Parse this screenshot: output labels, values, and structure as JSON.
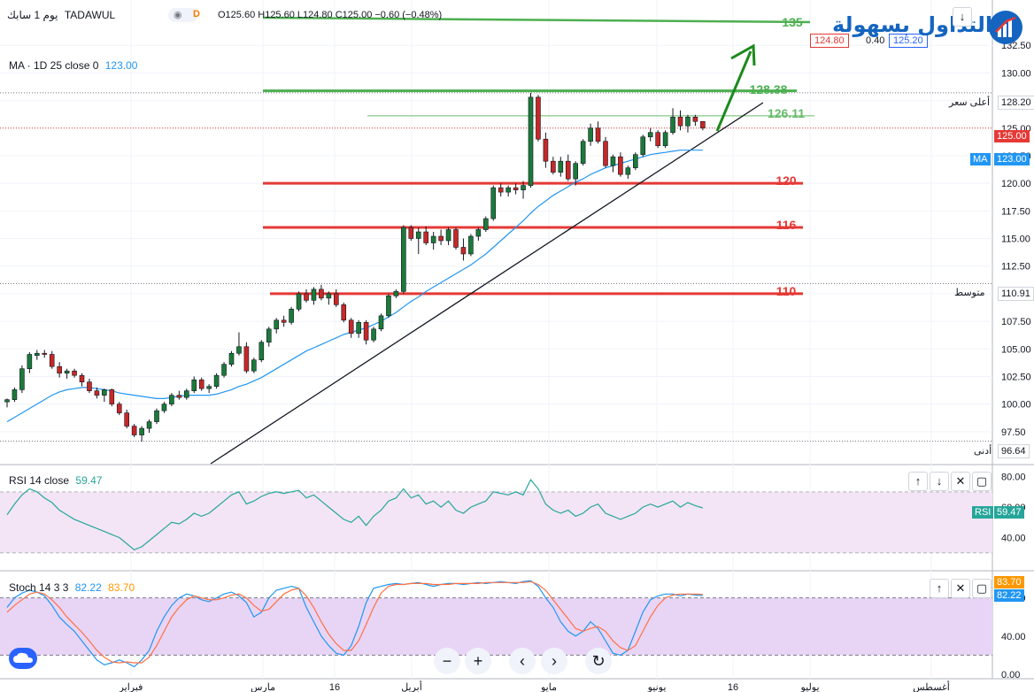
{
  "header": {
    "period": "يوم 1",
    "label": "سابك",
    "exchange": "TADAWUL",
    "ohlc": "O125.60 H125.60 L124.80 C125.00 −0.60 (−0.48%)",
    "sell_price": "124.80",
    "spread": "0.40",
    "buy_price": "125.20"
  },
  "logo": {
    "text": "التداول بسهولة"
  },
  "ma_legend": {
    "label": "MA · 1D 25 close 0",
    "value": "123.00"
  },
  "rsi_legend": {
    "label": "RSI 14 close",
    "value": "59.47"
  },
  "stoch_legend": {
    "label": "Stoch 14 3 3",
    "k": "82.22",
    "d": "83.70"
  },
  "price_tags": {
    "high_label": "أعلى سعر",
    "high": "128.20",
    "last": "125.00",
    "ma_label": "MA",
    "ma": "123.00",
    "avg_label": "متوسط",
    "avg": "110.91",
    "low_label": "أدنى",
    "low": "96.64",
    "rsi_label": "RSI",
    "rsi": "59.47",
    "stoch_d": "83.70",
    "stoch_k": "82.22"
  },
  "chart_data": {
    "type": "candlestick",
    "symbol": "TADAWUL",
    "price_axis": {
      "ticks": [
        97.5,
        100,
        102.5,
        105,
        107.5,
        110,
        112.5,
        115,
        117.5,
        120,
        122.5,
        125,
        127.5,
        130,
        132.5
      ],
      "range": [
        95,
        135
      ]
    },
    "time_axis": [
      "فبراير",
      "مارس",
      "16",
      "أبريل",
      "مايو",
      "يونيو",
      "16",
      "يوليو",
      "أغسطس"
    ],
    "candles": [
      [
        100.2,
        100.5,
        99.7,
        100.4
      ],
      [
        100.4,
        101.5,
        100.2,
        101.3
      ],
      [
        101.3,
        103.5,
        101.0,
        103.2
      ],
      [
        103.2,
        104.7,
        102.8,
        104.5
      ],
      [
        104.4,
        104.9,
        104.0,
        104.6
      ],
      [
        104.6,
        104.9,
        104.2,
        104.5
      ],
      [
        104.5,
        104.8,
        103.2,
        103.4
      ],
      [
        103.4,
        103.8,
        102.4,
        102.8
      ],
      [
        102.8,
        103.2,
        102.3,
        103.0
      ],
      [
        103.0,
        103.2,
        102.4,
        102.6
      ],
      [
        102.6,
        102.8,
        101.6,
        102.0
      ],
      [
        102.0,
        102.3,
        101.0,
        101.2
      ],
      [
        101.2,
        101.5,
        100.5,
        100.8
      ],
      [
        100.8,
        101.4,
        100.2,
        101.3
      ],
      [
        101.3,
        101.4,
        99.8,
        100.0
      ],
      [
        100.0,
        100.2,
        99.0,
        99.2
      ],
      [
        99.2,
        99.5,
        97.8,
        98.0
      ],
      [
        98.0,
        98.2,
        97.0,
        97.2
      ],
      [
        97.2,
        98.0,
        96.6,
        97.8
      ],
      [
        97.8,
        98.6,
        97.4,
        98.4
      ],
      [
        98.4,
        99.6,
        98.2,
        99.4
      ],
      [
        99.4,
        100.2,
        99.2,
        100.0
      ],
      [
        100.0,
        101.0,
        99.8,
        100.8
      ],
      [
        100.8,
        101.2,
        100.4,
        100.6
      ],
      [
        100.6,
        101.4,
        100.4,
        101.2
      ],
      [
        101.2,
        102.5,
        101.0,
        102.2
      ],
      [
        102.2,
        102.4,
        101.2,
        101.4
      ],
      [
        101.4,
        101.8,
        101.0,
        101.6
      ],
      [
        101.6,
        102.8,
        101.4,
        102.6
      ],
      [
        102.6,
        103.8,
        102.4,
        103.6
      ],
      [
        103.6,
        104.8,
        103.4,
        104.6
      ],
      [
        104.6,
        106.5,
        104.4,
        105.2
      ],
      [
        105.2,
        105.6,
        102.8,
        103.0
      ],
      [
        103.0,
        104.2,
        102.8,
        104.0
      ],
      [
        104.0,
        105.8,
        103.8,
        105.6
      ],
      [
        105.6,
        107.0,
        105.2,
        106.8
      ],
      [
        106.8,
        107.8,
        106.4,
        107.6
      ],
      [
        107.6,
        108.0,
        107.0,
        107.4
      ],
      [
        107.4,
        108.8,
        107.2,
        108.6
      ],
      [
        108.6,
        110.2,
        108.4,
        110.0
      ],
      [
        110.0,
        110.4,
        109.2,
        109.4
      ],
      [
        109.4,
        110.6,
        109.0,
        110.4
      ],
      [
        110.4,
        110.8,
        109.4,
        109.6
      ],
      [
        109.6,
        110.2,
        109.0,
        110.0
      ],
      [
        110.0,
        110.4,
        108.8,
        109.0
      ],
      [
        109.0,
        109.2,
        107.4,
        107.6
      ],
      [
        107.6,
        107.8,
        106.0,
        106.4
      ],
      [
        106.4,
        107.6,
        106.0,
        107.4
      ],
      [
        107.4,
        107.6,
        105.4,
        105.8
      ],
      [
        105.8,
        107.0,
        105.6,
        106.8
      ],
      [
        106.8,
        108.2,
        106.6,
        108.0
      ],
      [
        108.0,
        110.0,
        107.8,
        109.8
      ],
      [
        109.8,
        110.4,
        109.6,
        110.2
      ],
      [
        110.2,
        116.2,
        110.0,
        116.0
      ],
      [
        116.0,
        116.2,
        114.8,
        115.0
      ],
      [
        115.0,
        116.0,
        113.6,
        115.6
      ],
      [
        115.6,
        116.1,
        114.4,
        114.6
      ],
      [
        114.6,
        115.6,
        114.0,
        115.2
      ],
      [
        115.2,
        115.8,
        114.4,
        114.8
      ],
      [
        114.8,
        116.0,
        114.4,
        115.8
      ],
      [
        115.8,
        116.0,
        114.0,
        114.2
      ],
      [
        114.2,
        115.0,
        113.0,
        113.6
      ],
      [
        113.6,
        115.4,
        113.4,
        115.2
      ],
      [
        115.2,
        116.0,
        114.8,
        115.8
      ],
      [
        115.8,
        117.0,
        115.6,
        116.8
      ],
      [
        116.8,
        119.8,
        116.6,
        119.6
      ],
      [
        119.6,
        120.0,
        118.8,
        119.2
      ],
      [
        119.2,
        119.8,
        118.8,
        119.6
      ],
      [
        119.6,
        120.0,
        119.0,
        119.4
      ],
      [
        119.4,
        120.2,
        118.6,
        119.8
      ],
      [
        119.8,
        128.2,
        119.6,
        127.8
      ],
      [
        127.8,
        128.0,
        123.8,
        124.0
      ],
      [
        124.0,
        124.6,
        121.4,
        122.0
      ],
      [
        122.0,
        122.4,
        120.8,
        121.0
      ],
      [
        121.0,
        122.4,
        120.6,
        122.0
      ],
      [
        122.0,
        122.6,
        120.2,
        120.4
      ],
      [
        120.4,
        122.0,
        119.8,
        121.8
      ],
      [
        121.8,
        124.0,
        121.6,
        123.8
      ],
      [
        123.8,
        125.4,
        123.4,
        125.0
      ],
      [
        125.0,
        125.6,
        123.6,
        123.8
      ],
      [
        123.8,
        124.2,
        121.4,
        121.6
      ],
      [
        121.6,
        122.6,
        121.0,
        122.4
      ],
      [
        122.4,
        122.8,
        120.6,
        120.8
      ],
      [
        120.8,
        121.6,
        120.4,
        121.4
      ],
      [
        121.4,
        122.8,
        121.2,
        122.6
      ],
      [
        122.6,
        124.4,
        122.4,
        124.2
      ],
      [
        124.2,
        125.0,
        123.8,
        124.6
      ],
      [
        124.6,
        124.8,
        123.2,
        123.4
      ],
      [
        123.4,
        124.8,
        123.2,
        124.6
      ],
      [
        124.6,
        126.8,
        124.4,
        126.0
      ],
      [
        126.0,
        126.6,
        124.8,
        125.2
      ],
      [
        125.2,
        126.2,
        124.6,
        126.0
      ],
      [
        126.0,
        126.2,
        125.2,
        125.6
      ],
      [
        125.6,
        125.6,
        124.8,
        125.0
      ]
    ],
    "ma_series": [
      98.4,
      98.8,
      99.2,
      99.6,
      100.0,
      100.4,
      100.8,
      101.1,
      101.3,
      101.4,
      101.5,
      101.5,
      101.4,
      101.3,
      101.2,
      101.0,
      100.9,
      100.8,
      100.7,
      100.6,
      100.5,
      100.5,
      100.6,
      100.7,
      100.8,
      100.8,
      100.8,
      100.8,
      100.9,
      101.1,
      101.3,
      101.6,
      101.8,
      102.1,
      102.4,
      102.8,
      103.2,
      103.6,
      104.0,
      104.4,
      104.8,
      105.1,
      105.4,
      105.7,
      106.0,
      106.3,
      106.5,
      106.7,
      106.9,
      107.2,
      107.5,
      107.9,
      108.3,
      108.8,
      109.3,
      109.7,
      110.2,
      110.6,
      111.0,
      111.4,
      111.8,
      112.2,
      112.6,
      113.1,
      113.6,
      114.2,
      114.8,
      115.4,
      116.0,
      116.6,
      117.3,
      117.9,
      118.4,
      118.9,
      119.3,
      119.7,
      120.1,
      120.4,
      120.8,
      121.1,
      121.4,
      121.6,
      121.8,
      122.0,
      122.2,
      122.4,
      122.6,
      122.7,
      122.8,
      122.9,
      123.0,
      123.0,
      123.0,
      123.0
    ],
    "levels": [
      {
        "label": "135",
        "value": 135.0,
        "color": "#4caf50"
      },
      {
        "label": "128.38",
        "value": 128.38,
        "color": "#4caf50"
      },
      {
        "label": "126.11",
        "value": 126.11,
        "color": "#66bb6a"
      },
      {
        "label": "120",
        "value": 120.0,
        "color": "#e53935"
      },
      {
        "label": "116",
        "value": 116.0,
        "color": "#e53935"
      },
      {
        "label": "110",
        "value": 110.0,
        "color": "#e53935"
      }
    ],
    "rsi": {
      "axis": [
        40.0,
        60.0,
        80.0
      ],
      "values": [
        55,
        62,
        68,
        72,
        70,
        66,
        63,
        58,
        55,
        52,
        50,
        48,
        46,
        44,
        42,
        40,
        36,
        32,
        34,
        38,
        42,
        46,
        50,
        49,
        52,
        56,
        54,
        56,
        60,
        64,
        68,
        70,
        62,
        64,
        67,
        69,
        70,
        69,
        70,
        71,
        66,
        68,
        64,
        60,
        56,
        52,
        50,
        54,
        48,
        54,
        58,
        64,
        66,
        72,
        66,
        68,
        62,
        64,
        60,
        64,
        58,
        56,
        60,
        62,
        64,
        70,
        69,
        68,
        70,
        68,
        78,
        72,
        62,
        58,
        56,
        58,
        54,
        56,
        60,
        62,
        56,
        54,
        52,
        54,
        56,
        60,
        62,
        60,
        62,
        64,
        60,
        63,
        61,
        59.47
      ]
    },
    "stoch": {
      "axis": [
        0.0,
        40.0,
        80.0
      ],
      "k": [
        70,
        80,
        85,
        88,
        86,
        82,
        72,
        60,
        52,
        45,
        35,
        25,
        15,
        10,
        12,
        15,
        12,
        8,
        15,
        25,
        45,
        60,
        72,
        80,
        84,
        82,
        78,
        76,
        80,
        84,
        86,
        82,
        75,
        60,
        65,
        80,
        88,
        90,
        92,
        90,
        70,
        55,
        40,
        30,
        22,
        20,
        30,
        50,
        75,
        90,
        92,
        94,
        95,
        94,
        95,
        96,
        94,
        92,
        94,
        95,
        95,
        94,
        95,
        96,
        95,
        96,
        97,
        96,
        95,
        97,
        98,
        92,
        80,
        70,
        55,
        45,
        40,
        45,
        55,
        48,
        35,
        22,
        20,
        25,
        45,
        65,
        78,
        82,
        84,
        84,
        82,
        84,
        83,
        82.22
      ],
      "d": [
        65,
        72,
        78,
        84,
        86,
        84,
        78,
        70,
        60,
        52,
        44,
        35,
        25,
        18,
        13,
        12,
        13,
        12,
        12,
        18,
        30,
        45,
        60,
        70,
        78,
        82,
        80,
        78,
        78,
        80,
        83,
        84,
        80,
        72,
        66,
        68,
        76,
        84,
        88,
        90,
        82,
        70,
        55,
        42,
        32,
        25,
        25,
        35,
        52,
        70,
        85,
        92,
        94,
        94,
        95,
        95,
        95,
        94,
        94,
        94,
        95,
        95,
        95,
        95,
        96,
        96,
        96,
        96,
        96,
        96,
        97,
        94,
        88,
        78,
        68,
        58,
        48,
        45,
        48,
        50,
        45,
        35,
        28,
        25,
        30,
        45,
        60,
        72,
        80,
        83,
        84,
        84,
        84,
        83.7
      ]
    }
  }
}
